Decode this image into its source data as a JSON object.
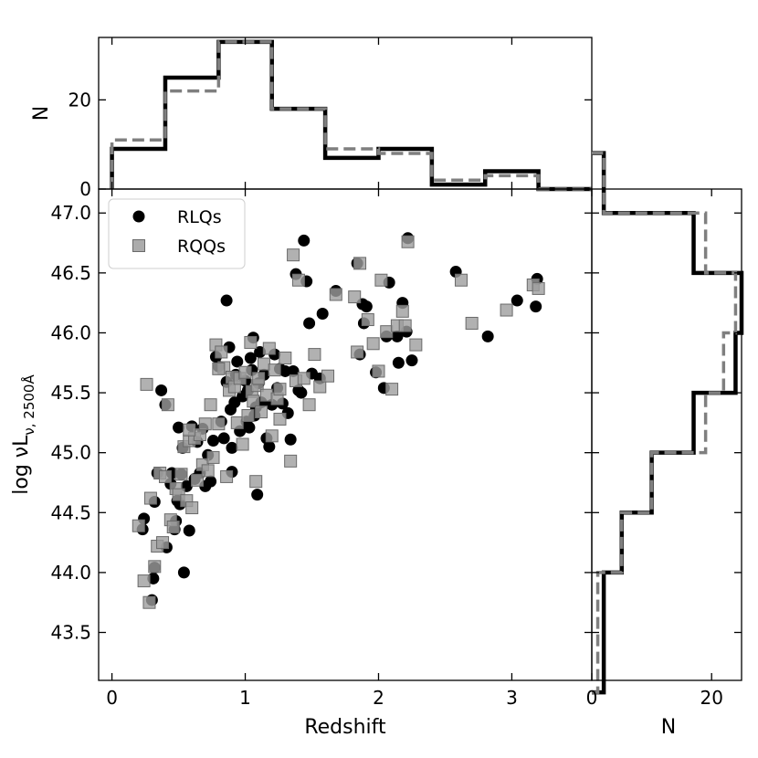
{
  "chart_data": {
    "type": "scatter",
    "main": {
      "xlabel": "Redshift",
      "ylabel": "log νL",
      "ylabel_sub": "ν, 2500Å",
      "xlim": [
        -0.1,
        3.6
      ],
      "ylim": [
        43.1,
        47.2
      ],
      "xticks": [
        0,
        1,
        2,
        3
      ],
      "yticks": [
        43.5,
        44.0,
        44.5,
        45.0,
        45.5,
        46.0,
        46.5,
        47.0
      ],
      "ytick_labels": [
        "43.5",
        "44.0",
        "44.5",
        "45.0",
        "45.5",
        "46.0",
        "46.5",
        "47.0"
      ],
      "legend_position": "top-left",
      "series": [
        {
          "name": "RLQs",
          "marker": "circle",
          "color": "#000000",
          "points": [
            [
              0.23,
              44.36
            ],
            [
              0.24,
              44.45
            ],
            [
              0.3,
              43.77
            ],
            [
              0.31,
              43.95
            ],
            [
              0.32,
              44.04
            ],
            [
              0.32,
              44.59
            ],
            [
              0.34,
              44.83
            ],
            [
              0.37,
              45.52
            ],
            [
              0.4,
              45.4
            ],
            [
              0.41,
              44.21
            ],
            [
              0.44,
              44.74
            ],
            [
              0.45,
              44.83
            ],
            [
              0.47,
              44.36
            ],
            [
              0.48,
              44.43
            ],
            [
              0.49,
              44.6
            ],
            [
              0.5,
              45.21
            ],
            [
              0.51,
              44.57
            ],
            [
              0.52,
              44.82
            ],
            [
              0.53,
              45.04
            ],
            [
              0.54,
              44.0
            ],
            [
              0.56,
              44.72
            ],
            [
              0.58,
              44.35
            ],
            [
              0.6,
              45.22
            ],
            [
              0.62,
              44.78
            ],
            [
              0.64,
              45.09
            ],
            [
              0.66,
              44.83
            ],
            [
              0.68,
              45.2
            ],
            [
              0.7,
              44.72
            ],
            [
              0.72,
              44.98
            ],
            [
              0.74,
              44.76
            ],
            [
              0.76,
              45.1
            ],
            [
              0.78,
              45.8
            ],
            [
              0.8,
              45.72
            ],
            [
              0.82,
              45.26
            ],
            [
              0.84,
              45.12
            ],
            [
              0.86,
              46.27
            ],
            [
              0.86,
              45.59
            ],
            [
              0.88,
              45.88
            ],
            [
              0.89,
              45.36
            ],
            [
              0.9,
              44.84
            ],
            [
              0.9,
              45.04
            ],
            [
              0.92,
              45.42
            ],
            [
              0.93,
              45.65
            ],
            [
              0.94,
              45.76
            ],
            [
              0.96,
              45.18
            ],
            [
              0.98,
              45.47
            ],
            [
              1.0,
              45.6
            ],
            [
              1.01,
              45.26
            ],
            [
              1.02,
              45.52
            ],
            [
              1.03,
              45.21
            ],
            [
              1.04,
              45.79
            ],
            [
              1.05,
              45.69
            ],
            [
              1.06,
              45.96
            ],
            [
              1.07,
              45.31
            ],
            [
              1.08,
              45.38
            ],
            [
              1.09,
              44.65
            ],
            [
              1.1,
              45.58
            ],
            [
              1.11,
              45.84
            ],
            [
              1.12,
              45.42
            ],
            [
              1.14,
              45.65
            ],
            [
              1.16,
              45.12
            ],
            [
              1.18,
              45.05
            ],
            [
              1.2,
              45.4
            ],
            [
              1.22,
              45.82
            ],
            [
              1.24,
              45.54
            ],
            [
              1.26,
              45.7
            ],
            [
              1.28,
              45.41
            ],
            [
              1.3,
              45.68
            ],
            [
              1.32,
              45.33
            ],
            [
              1.34,
              45.11
            ],
            [
              1.36,
              45.68
            ],
            [
              1.38,
              46.49
            ],
            [
              1.4,
              45.52
            ],
            [
              1.42,
              45.5
            ],
            [
              1.44,
              46.77
            ],
            [
              1.46,
              46.43
            ],
            [
              1.48,
              46.08
            ],
            [
              1.5,
              45.66
            ],
            [
              1.56,
              45.62
            ],
            [
              1.58,
              46.16
            ],
            [
              1.68,
              46.35
            ],
            [
              1.84,
              46.58
            ],
            [
              1.86,
              45.82
            ],
            [
              1.88,
              46.24
            ],
            [
              1.89,
              46.08
            ],
            [
              1.91,
              46.22
            ],
            [
              1.98,
              45.67
            ],
            [
              2.04,
              45.54
            ],
            [
              2.06,
              45.97
            ],
            [
              2.08,
              46.42
            ],
            [
              2.14,
              45.97
            ],
            [
              2.15,
              45.75
            ],
            [
              2.18,
              46.25
            ],
            [
              2.21,
              46.01
            ],
            [
              2.22,
              46.79
            ],
            [
              2.25,
              45.77
            ],
            [
              2.58,
              46.51
            ],
            [
              2.82,
              45.97
            ],
            [
              3.04,
              46.27
            ],
            [
              3.18,
              46.22
            ],
            [
              3.19,
              46.45
            ]
          ]
        },
        {
          "name": "RQQs",
          "marker": "square",
          "color": "#9e9e9e",
          "points": [
            [
              0.2,
              44.39
            ],
            [
              0.24,
              43.93
            ],
            [
              0.26,
              45.57
            ],
            [
              0.28,
              43.75
            ],
            [
              0.29,
              44.62
            ],
            [
              0.32,
              44.05
            ],
            [
              0.34,
              44.22
            ],
            [
              0.36,
              44.83
            ],
            [
              0.38,
              44.25
            ],
            [
              0.4,
              44.8
            ],
            [
              0.42,
              45.4
            ],
            [
              0.44,
              44.44
            ],
            [
              0.46,
              44.38
            ],
            [
              0.48,
              44.7
            ],
            [
              0.5,
              44.65
            ],
            [
              0.52,
              44.82
            ],
            [
              0.54,
              45.05
            ],
            [
              0.56,
              44.6
            ],
            [
              0.58,
              45.1
            ],
            [
              0.6,
              44.54
            ],
            [
              0.62,
              45.12
            ],
            [
              0.64,
              44.77
            ],
            [
              0.66,
              45.15
            ],
            [
              0.68,
              44.9
            ],
            [
              0.7,
              45.24
            ],
            [
              0.72,
              44.85
            ],
            [
              0.74,
              45.4
            ],
            [
              0.76,
              44.96
            ],
            [
              0.78,
              45.9
            ],
            [
              0.8,
              45.24
            ],
            [
              0.82,
              45.84
            ],
            [
              0.84,
              45.71
            ],
            [
              0.86,
              44.8
            ],
            [
              0.88,
              45.52
            ],
            [
              0.9,
              45.63
            ],
            [
              0.92,
              45.55
            ],
            [
              0.94,
              45.25
            ],
            [
              0.96,
              45.62
            ],
            [
              0.98,
              45.07
            ],
            [
              1.0,
              45.67
            ],
            [
              1.02,
              45.31
            ],
            [
              1.04,
              45.92
            ],
            [
              1.05,
              45.51
            ],
            [
              1.06,
              45.43
            ],
            [
              1.08,
              44.76
            ],
            [
              1.09,
              45.56
            ],
            [
              1.1,
              45.62
            ],
            [
              1.12,
              45.34
            ],
            [
              1.14,
              45.74
            ],
            [
              1.16,
              45.48
            ],
            [
              1.18,
              45.87
            ],
            [
              1.2,
              45.14
            ],
            [
              1.22,
              45.69
            ],
            [
              1.24,
              45.45
            ],
            [
              1.26,
              45.28
            ],
            [
              1.3,
              45.79
            ],
            [
              1.34,
              44.93
            ],
            [
              1.36,
              46.65
            ],
            [
              1.38,
              45.6
            ],
            [
              1.4,
              46.44
            ],
            [
              1.44,
              45.62
            ],
            [
              1.48,
              45.4
            ],
            [
              1.52,
              45.82
            ],
            [
              1.56,
              45.55
            ],
            [
              1.62,
              45.64
            ],
            [
              1.68,
              46.32
            ],
            [
              1.82,
              46.3
            ],
            [
              1.84,
              45.84
            ],
            [
              1.86,
              46.58
            ],
            [
              1.92,
              46.11
            ],
            [
              1.96,
              45.91
            ],
            [
              2.0,
              45.68
            ],
            [
              2.02,
              46.44
            ],
            [
              2.06,
              46.01
            ],
            [
              2.1,
              45.53
            ],
            [
              2.14,
              46.06
            ],
            [
              2.18,
              46.18
            ],
            [
              2.2,
              46.06
            ],
            [
              2.22,
              46.76
            ],
            [
              2.28,
              45.9
            ],
            [
              2.62,
              46.44
            ],
            [
              2.7,
              46.08
            ],
            [
              2.96,
              46.19
            ],
            [
              3.16,
              46.4
            ],
            [
              3.2,
              46.37
            ],
            [
              0.8,
              45.7
            ],
            [
              1.26,
              45.53
            ],
            [
              0.58,
              45.19
            ]
          ]
        }
      ]
    },
    "top_hist": {
      "ylabel": "N",
      "xlim": [
        -0.1,
        3.6
      ],
      "ylim": [
        0,
        34
      ],
      "yticks": [
        0,
        20
      ],
      "bin_edges": [
        0,
        0.4,
        0.8,
        1.2,
        1.6,
        2.0,
        2.4,
        2.8,
        3.2,
        3.6
      ],
      "series": [
        {
          "name": "RLQs",
          "style": "solid",
          "color": "#000000",
          "counts": [
            9,
            25,
            33,
            18,
            7,
            9,
            1,
            4,
            0
          ]
        },
        {
          "name": "RQQs",
          "style": "dashed",
          "color": "#7f7f7f",
          "counts": [
            11,
            22,
            33,
            18,
            9,
            8,
            2,
            3,
            0
          ]
        }
      ]
    },
    "right_hist": {
      "xlabel": "N",
      "xlim": [
        0,
        25
      ],
      "xticks": [
        0,
        20
      ],
      "bin_edges": [
        43.0,
        43.5,
        44.0,
        44.5,
        45.0,
        45.5,
        46.0,
        46.5,
        47.0,
        47.5
      ],
      "series": [
        {
          "name": "RLQs",
          "style": "solid",
          "color": "#000000",
          "counts": [
            2,
            2,
            5,
            10,
            17,
            24,
            25,
            17,
            2
          ]
        },
        {
          "name": "RQQs",
          "style": "dashed",
          "color": "#7f7f7f",
          "counts": [
            1,
            1,
            5,
            10,
            19,
            22,
            24,
            19,
            2
          ]
        }
      ]
    }
  }
}
